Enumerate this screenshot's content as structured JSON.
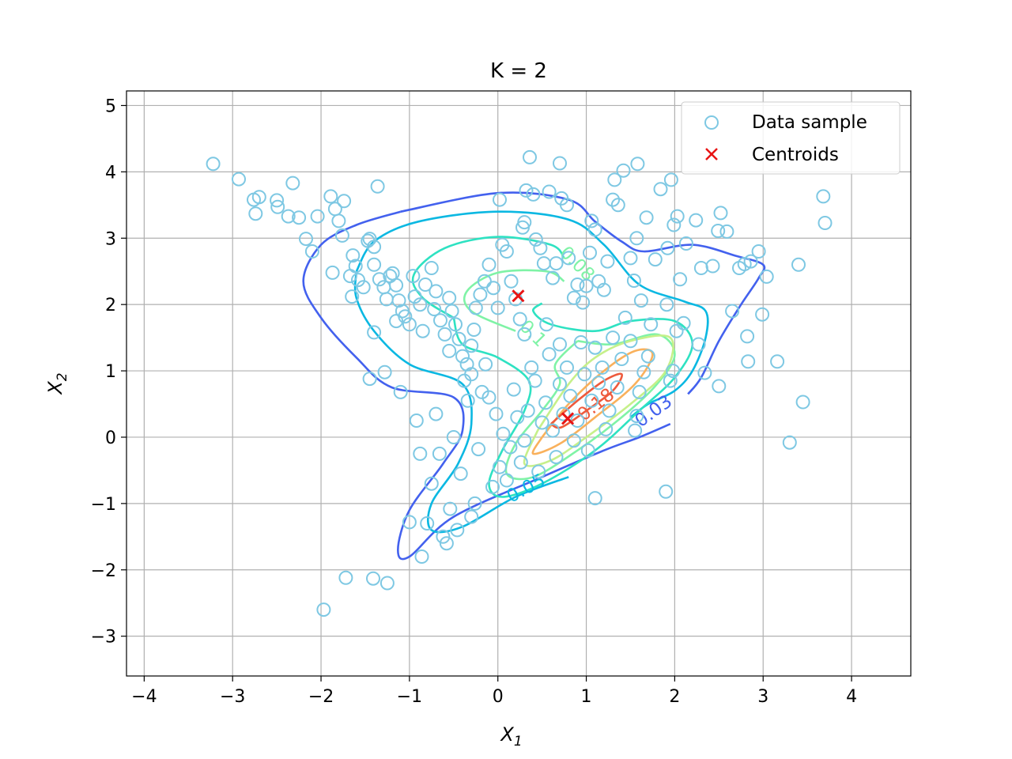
{
  "chart_data": {
    "type": "scatter",
    "title": "K = 2",
    "xlabel": "X",
    "xlabel_sub": "1",
    "ylabel": "X",
    "ylabel_sub": "2",
    "xlim": [
      -4.2,
      4.67
    ],
    "ylim": [
      -3.6,
      5.22
    ],
    "xticks": [
      -4,
      -3,
      -2,
      -1,
      0,
      1,
      2,
      3,
      4
    ],
    "yticks": [
      -3,
      -2,
      -1,
      0,
      1,
      2,
      3,
      4,
      5
    ],
    "xtick_labels": [
      "−4",
      "−3",
      "−2",
      "−1",
      "0",
      "1",
      "2",
      "3",
      "4"
    ],
    "ytick_labels": [
      "−3",
      "−2",
      "−1",
      "0",
      "1",
      "2",
      "3",
      "4",
      "5"
    ],
    "grid": true,
    "legend": {
      "placement": "upper right",
      "entries": [
        {
          "label": "Data sample",
          "marker": "circle",
          "color": "#7ec8e3"
        },
        {
          "label": "Centroids",
          "marker": "x",
          "color": "#e81414"
        }
      ]
    },
    "series": [
      {
        "name": "Data sample",
        "kind": "scatter",
        "color": "#7ec8e3",
        "points": [
          [
            -3.22,
            4.12
          ],
          [
            -2.93,
            3.89
          ],
          [
            -2.76,
            3.58
          ],
          [
            -2.7,
            3.62
          ],
          [
            -2.74,
            3.37
          ],
          [
            -2.5,
            3.57
          ],
          [
            -2.49,
            3.47
          ],
          [
            -2.32,
            3.83
          ],
          [
            -2.37,
            3.33
          ],
          [
            -2.25,
            3.31
          ],
          [
            -2.17,
            2.99
          ],
          [
            -2.1,
            2.8
          ],
          [
            -2.04,
            3.33
          ],
          [
            -1.89,
            3.63
          ],
          [
            -1.84,
            3.44
          ],
          [
            -1.74,
            3.56
          ],
          [
            -1.8,
            3.26
          ],
          [
            -1.76,
            3.04
          ],
          [
            -1.87,
            2.48
          ],
          [
            -1.67,
            2.43
          ],
          [
            -1.64,
            2.74
          ],
          [
            -1.61,
            2.58
          ],
          [
            -1.58,
            2.37
          ],
          [
            -1.65,
            2.12
          ],
          [
            -1.52,
            2.26
          ],
          [
            -1.47,
            2.96
          ],
          [
            -1.45,
            2.99
          ],
          [
            -1.4,
            2.87
          ],
          [
            -1.36,
            3.78
          ],
          [
            -1.4,
            2.6
          ],
          [
            -1.34,
            2.38
          ],
          [
            -1.29,
            2.26
          ],
          [
            -1.26,
            2.08
          ],
          [
            -1.22,
            2.43
          ],
          [
            -1.19,
            2.47
          ],
          [
            -1.15,
            2.29
          ],
          [
            -1.12,
            2.06
          ],
          [
            -1.08,
            1.9
          ],
          [
            -1.05,
            1.82
          ],
          [
            -1.0,
            1.7
          ],
          [
            -0.96,
            2.43
          ],
          [
            -0.94,
            2.12
          ],
          [
            -0.88,
            2.0
          ],
          [
            -0.82,
            2.3
          ],
          [
            -0.75,
            2.55
          ],
          [
            -0.72,
            1.93
          ],
          [
            -0.65,
            1.76
          ],
          [
            -0.6,
            1.55
          ],
          [
            -0.55,
            2.1
          ],
          [
            -0.52,
            1.9
          ],
          [
            -0.48,
            1.7
          ],
          [
            -0.44,
            1.48
          ],
          [
            -0.4,
            1.22
          ],
          [
            -0.35,
            1.1
          ],
          [
            -0.3,
            1.38
          ],
          [
            -0.27,
            1.62
          ],
          [
            -0.25,
            1.95
          ],
          [
            -0.2,
            2.15
          ],
          [
            -0.15,
            2.35
          ],
          [
            -0.1,
            2.6
          ],
          [
            -0.05,
            2.25
          ],
          [
            0.0,
            1.95
          ],
          [
            0.02,
            3.58
          ],
          [
            0.05,
            2.9
          ],
          [
            0.1,
            2.8
          ],
          [
            0.15,
            2.35
          ],
          [
            0.2,
            2.08
          ],
          [
            0.25,
            1.78
          ],
          [
            0.28,
            3.16
          ],
          [
            0.3,
            3.24
          ],
          [
            0.32,
            3.72
          ],
          [
            0.36,
            4.22
          ],
          [
            0.4,
            3.66
          ],
          [
            0.43,
            2.98
          ],
          [
            0.48,
            2.85
          ],
          [
            0.52,
            2.62
          ],
          [
            0.58,
            3.7
          ],
          [
            0.62,
            2.4
          ],
          [
            0.66,
            2.62
          ],
          [
            0.72,
            3.6
          ],
          [
            0.7,
            4.13
          ],
          [
            0.78,
            3.5
          ],
          [
            0.8,
            2.7
          ],
          [
            0.86,
            2.1
          ],
          [
            0.9,
            2.3
          ],
          [
            0.96,
            2.03
          ],
          [
            1.0,
            2.28
          ],
          [
            1.04,
            2.78
          ],
          [
            1.06,
            3.26
          ],
          [
            1.1,
            3.13
          ],
          [
            1.14,
            2.35
          ],
          [
            1.2,
            2.22
          ],
          [
            1.24,
            2.65
          ],
          [
            1.3,
            3.58
          ],
          [
            1.32,
            3.88
          ],
          [
            1.36,
            3.5
          ],
          [
            1.42,
            4.02
          ],
          [
            1.5,
            2.7
          ],
          [
            1.54,
            2.36
          ],
          [
            1.57,
            3.0
          ],
          [
            1.58,
            4.12
          ],
          [
            1.62,
            2.06
          ],
          [
            1.68,
            3.31
          ],
          [
            1.78,
            2.68
          ],
          [
            1.84,
            3.74
          ],
          [
            1.92,
            2.85
          ],
          [
            1.96,
            3.88
          ],
          [
            1.99,
            3.2
          ],
          [
            2.03,
            3.33
          ],
          [
            2.06,
            2.38
          ],
          [
            2.13,
            2.92
          ],
          [
            2.24,
            3.27
          ],
          [
            2.3,
            2.55
          ],
          [
            2.43,
            2.58
          ],
          [
            2.49,
            3.11
          ],
          [
            2.52,
            3.38
          ],
          [
            2.59,
            3.1
          ],
          [
            2.73,
            2.55
          ],
          [
            2.79,
            2.61
          ],
          [
            2.86,
            2.65
          ],
          [
            2.95,
            2.8
          ],
          [
            3.04,
            2.42
          ],
          [
            3.4,
            2.6
          ],
          [
            3.68,
            3.63
          ],
          [
            3.7,
            3.23
          ],
          [
            2.99,
            1.85
          ],
          [
            2.82,
            1.52
          ],
          [
            2.83,
            1.14
          ],
          [
            2.65,
            1.9
          ],
          [
            2.5,
            0.77
          ],
          [
            2.27,
            1.4
          ],
          [
            2.34,
            0.97
          ],
          [
            2.1,
            1.72
          ],
          [
            2.02,
            1.6
          ],
          [
            1.98,
            1.0
          ],
          [
            1.95,
            0.85
          ],
          [
            1.91,
            2.0
          ],
          [
            1.73,
            1.7
          ],
          [
            1.7,
            1.22
          ],
          [
            1.65,
            0.98
          ],
          [
            1.6,
            0.68
          ],
          [
            1.57,
            0.32
          ],
          [
            1.55,
            0.1
          ],
          [
            1.5,
            1.45
          ],
          [
            1.44,
            1.8
          ],
          [
            1.4,
            1.18
          ],
          [
            1.35,
            0.75
          ],
          [
            1.3,
            1.5
          ],
          [
            1.26,
            0.4
          ],
          [
            1.22,
            0.12
          ],
          [
            1.18,
            1.05
          ],
          [
            1.14,
            0.82
          ],
          [
            1.1,
            1.35
          ],
          [
            1.06,
            0.55
          ],
          [
            1.02,
            -0.2
          ],
          [
            0.98,
            0.95
          ],
          [
            0.94,
            1.43
          ],
          [
            0.9,
            0.25
          ],
          [
            0.86,
            -0.05
          ],
          [
            0.82,
            0.62
          ],
          [
            0.78,
            1.05
          ],
          [
            0.74,
            0.35
          ],
          [
            0.7,
            0.8
          ],
          [
            0.66,
            -0.3
          ],
          [
            0.62,
            0.1
          ],
          [
            0.58,
            1.25
          ],
          [
            0.54,
            0.52
          ],
          [
            0.5,
            0.22
          ],
          [
            0.46,
            -0.52
          ],
          [
            0.42,
            0.85
          ],
          [
            0.38,
            1.05
          ],
          [
            0.34,
            0.4
          ],
          [
            0.3,
            -0.05
          ],
          [
            0.26,
            -0.38
          ],
          [
            0.22,
            0.3
          ],
          [
            0.18,
            0.72
          ],
          [
            0.14,
            -0.15
          ],
          [
            0.1,
            -0.65
          ],
          [
            0.06,
            0.05
          ],
          [
            0.02,
            -0.45
          ],
          [
            -0.02,
            0.35
          ],
          [
            -0.06,
            -0.75
          ],
          [
            -0.1,
            0.6
          ],
          [
            -0.14,
            1.1
          ],
          [
            -0.18,
            0.68
          ],
          [
            -0.22,
            -0.18
          ],
          [
            -0.26,
            -1.0
          ],
          [
            -0.3,
            -1.2
          ],
          [
            -0.34,
            0.55
          ],
          [
            -0.38,
            0.85
          ],
          [
            -0.42,
            -0.55
          ],
          [
            -0.46,
            -1.4
          ],
          [
            -0.5,
            0.0
          ],
          [
            -0.54,
            -1.08
          ],
          [
            -0.58,
            -1.6
          ],
          [
            -0.62,
            -1.5
          ],
          [
            -0.66,
            -0.25
          ],
          [
            -0.7,
            0.35
          ],
          [
            -0.75,
            -0.7
          ],
          [
            -0.8,
            -1.3
          ],
          [
            -0.86,
            -1.8
          ],
          [
            -0.88,
            -0.25
          ],
          [
            -0.92,
            0.25
          ],
          [
            -1.0,
            -1.28
          ],
          [
            -1.1,
            0.68
          ],
          [
            -1.28,
            0.98
          ],
          [
            -1.45,
            0.88
          ],
          [
            -1.4,
            1.58
          ],
          [
            -1.25,
            -2.2
          ],
          [
            -1.41,
            -2.13
          ],
          [
            -1.72,
            -2.12
          ],
          [
            -1.97,
            -2.6
          ],
          [
            3.3,
            -0.08
          ],
          [
            3.45,
            0.53
          ],
          [
            3.16,
            1.14
          ],
          [
            1.9,
            -0.82
          ],
          [
            1.1,
            -0.92
          ],
          [
            0.7,
            1.4
          ],
          [
            0.55,
            1.7
          ],
          [
            0.3,
            1.55
          ],
          [
            -0.3,
            0.95
          ],
          [
            -0.55,
            1.3
          ],
          [
            -0.85,
            1.6
          ],
          [
            -1.15,
            1.75
          ],
          [
            -0.7,
            2.2
          ]
        ]
      },
      {
        "name": "Centroids",
        "kind": "scatter",
        "color": "#e81414",
        "points": [
          [
            0.23,
            2.13
          ],
          [
            0.79,
            0.28
          ]
        ]
      }
    ],
    "contours": [
      {
        "level": "0.03",
        "color": "#4361ee"
      },
      {
        "level": "0.05",
        "color": "#0bb8e2"
      },
      {
        "level": "0.08",
        "color": "#2ee2c2"
      },
      {
        "level": "0.1",
        "color": "#7ff3a6"
      },
      {
        "level": "0.13",
        "color": "#c6f08a"
      },
      {
        "level": "0.15",
        "color": "#f9b15c"
      },
      {
        "level": "0.18",
        "color": "#ee5a3c"
      }
    ],
    "contour_labels": [
      {
        "text": "0.03",
        "color": "#4361ee"
      },
      {
        "text": "0.05",
        "color": "#0bb8e2"
      },
      {
        "text": "0.08",
        "color": "#7ff3a6"
      },
      {
        "text": "0.1",
        "color": "#7ff3a6"
      },
      {
        "text": "0.18",
        "color": "#ee5a3c"
      }
    ]
  }
}
